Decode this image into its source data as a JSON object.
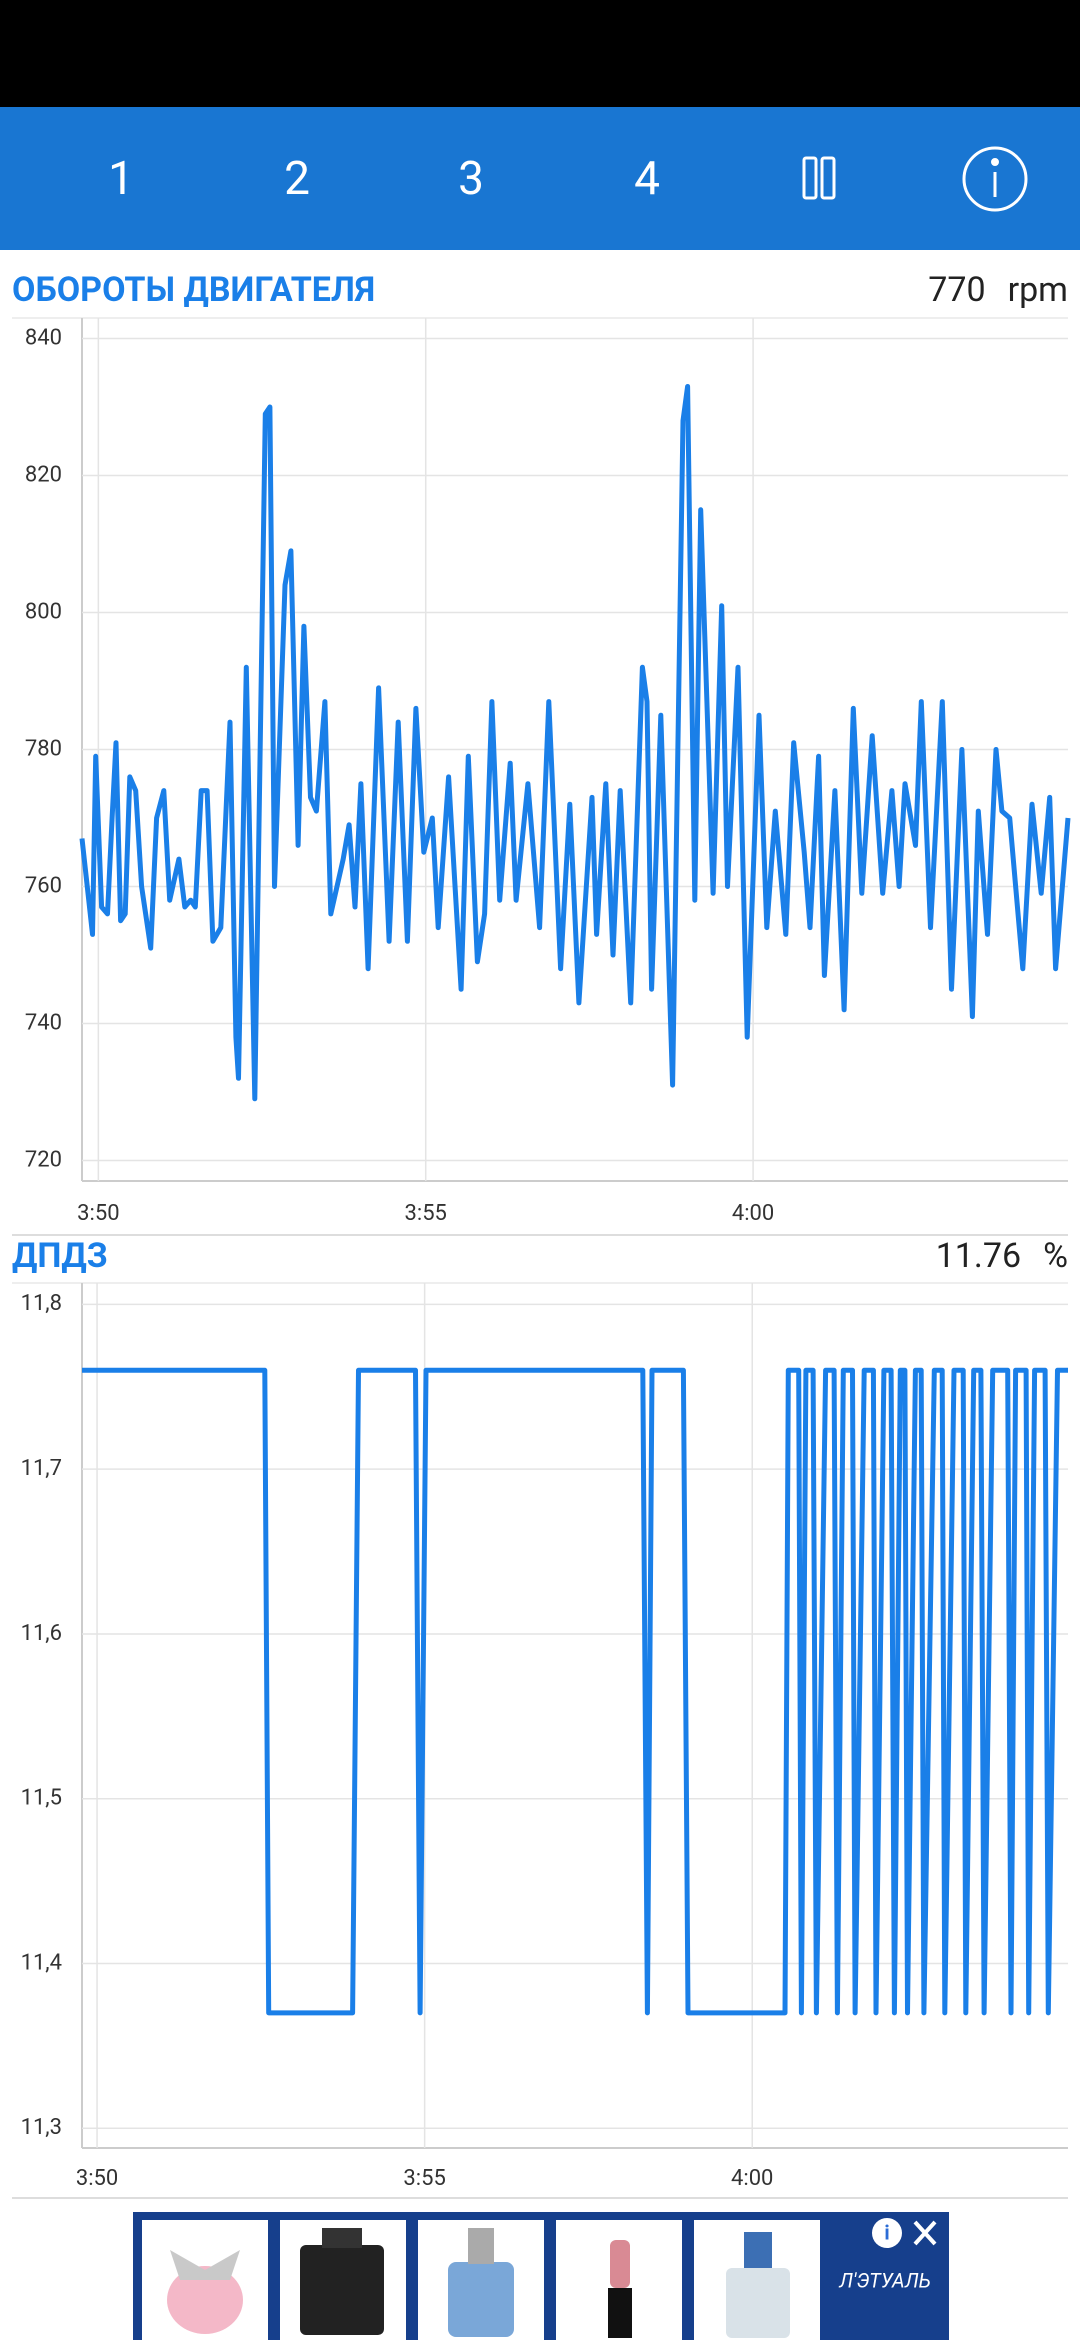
{
  "toolbar": {
    "tabs": [
      "1",
      "2",
      "3",
      "4"
    ]
  },
  "chart_data": [
    {
      "type": "line",
      "title": "ОБОРОТЫ ДВИГАТЕЛЯ",
      "current_value": 770,
      "unit": "rpm",
      "color": "#1a7fe8",
      "grid": true,
      "x": [
        229.75,
        229.91,
        229.96,
        230.05,
        230.14,
        230.21,
        230.27,
        230.34,
        230.41,
        230.48,
        230.57,
        230.66,
        230.8,
        230.89,
        231.0,
        231.09,
        231.23,
        231.32,
        231.41,
        231.48,
        231.57,
        231.66,
        231.75,
        231.87,
        232.01,
        232.1,
        232.14,
        232.26,
        232.39,
        232.55,
        232.62,
        232.69,
        232.85,
        232.94,
        233.05,
        233.14,
        233.24,
        233.33,
        233.46,
        233.55,
        233.74,
        233.83,
        233.92,
        234.01,
        234.12,
        234.28,
        234.44,
        234.58,
        234.72,
        234.85,
        234.97,
        235.1,
        235.19,
        235.35,
        235.54,
        235.65,
        235.79,
        235.9,
        236.01,
        236.13,
        236.29,
        236.38,
        236.56,
        236.74,
        236.88,
        237.06,
        237.2,
        237.34,
        237.54,
        237.61,
        237.75,
        237.86,
        237.97,
        238.13,
        238.31,
        238.38,
        238.45,
        238.59,
        238.77,
        238.93,
        239.0,
        239.11,
        239.2,
        239.39,
        239.52,
        239.61,
        239.77,
        239.91,
        240.09,
        240.21,
        240.34,
        240.5,
        240.62,
        240.78,
        240.87,
        241.0,
        241.09,
        241.25,
        241.39,
        241.53,
        241.66,
        241.82,
        241.98,
        242.12,
        242.23,
        242.32,
        242.48,
        242.57,
        242.71,
        242.89,
        243.03,
        243.19,
        243.35,
        243.44,
        243.58,
        243.71,
        243.8,
        243.92,
        244.12,
        244.26,
        244.4,
        244.53,
        244.62,
        244.81
      ],
      "values": [
        767,
        753,
        779,
        757,
        756,
        770,
        781,
        755,
        756,
        776,
        774,
        760,
        751,
        770,
        774,
        758,
        764,
        757,
        758,
        757,
        774,
        774,
        752,
        754,
        784,
        738,
        732,
        792,
        729,
        829,
        830,
        760,
        804,
        809,
        766,
        798,
        773,
        771,
        787,
        756,
        764,
        769,
        757,
        775,
        748,
        789,
        752,
        784,
        752,
        786,
        765,
        770,
        754,
        776,
        745,
        779,
        749,
        756,
        787,
        758,
        778,
        758,
        775,
        754,
        787,
        748,
        772,
        743,
        773,
        753,
        775,
        750,
        774,
        743,
        792,
        787,
        745,
        785,
        731,
        828,
        833,
        758,
        815,
        759,
        801,
        760,
        792,
        738,
        785,
        754,
        771,
        753,
        781,
        765,
        754,
        779,
        747,
        774,
        742,
        786,
        759,
        782,
        759,
        774,
        760,
        775,
        766,
        787,
        754,
        787,
        745,
        780,
        741,
        771,
        753,
        780,
        771,
        770,
        748,
        772,
        759,
        773,
        748,
        770
      ],
      "xlim": [
        229.75,
        244.81
      ],
      "ylim": [
        717,
        843
      ],
      "xticks": [
        {
          "value": 230,
          "label": "3:50"
        },
        {
          "value": 235,
          "label": "3:55"
        },
        {
          "value": 240,
          "label": "4:00"
        }
      ],
      "yticks": [
        720,
        740,
        760,
        780,
        800,
        820,
        840
      ]
    },
    {
      "type": "line",
      "title": "ДПДЗ",
      "current_value": 11.76,
      "unit": "%",
      "color": "#1a7fe8",
      "grid": true,
      "x": [
        229.77,
        232.56,
        232.62,
        233.9,
        233.99,
        234.86,
        234.93,
        235.02,
        238.33,
        238.4,
        238.47,
        238.95,
        239.02,
        240.5,
        240.55,
        240.71,
        240.75,
        240.82,
        240.93,
        240.98,
        241.12,
        241.25,
        241.3,
        241.39,
        241.53,
        241.57,
        241.71,
        241.85,
        241.89,
        242.01,
        242.12,
        242.17,
        242.26,
        242.33,
        242.37,
        242.49,
        242.58,
        242.62,
        242.78,
        242.9,
        242.94,
        243.08,
        243.22,
        243.26,
        243.38,
        243.49,
        243.54,
        243.67,
        243.9,
        243.95,
        244.02,
        244.18,
        244.22,
        244.31,
        244.47,
        244.52,
        244.66,
        244.82
      ],
      "values": [
        11.76,
        11.76,
        11.37,
        11.37,
        11.76,
        11.76,
        11.37,
        11.76,
        11.76,
        11.37,
        11.76,
        11.76,
        11.37,
        11.37,
        11.76,
        11.76,
        11.37,
        11.76,
        11.76,
        11.37,
        11.76,
        11.76,
        11.37,
        11.76,
        11.76,
        11.37,
        11.76,
        11.76,
        11.37,
        11.76,
        11.76,
        11.37,
        11.76,
        11.76,
        11.37,
        11.76,
        11.76,
        11.37,
        11.76,
        11.76,
        11.37,
        11.76,
        11.76,
        11.37,
        11.76,
        11.76,
        11.37,
        11.76,
        11.76,
        11.37,
        11.76,
        11.76,
        11.37,
        11.76,
        11.76,
        11.37,
        11.76,
        11.76
      ],
      "xlim": [
        229.77,
        244.82
      ],
      "ylim": [
        11.288,
        11.813
      ],
      "xticks": [
        {
          "value": 230,
          "label": "3:50"
        },
        {
          "value": 235,
          "label": "3:55"
        },
        {
          "value": 240,
          "label": "4:00"
        }
      ],
      "yticks": [
        {
          "value": 11.3,
          "label": "11,3"
        },
        {
          "value": 11.4,
          "label": "11,4"
        },
        {
          "value": 11.5,
          "label": "11,5"
        },
        {
          "value": 11.6,
          "label": "11,6"
        },
        {
          "value": 11.7,
          "label": "11,7"
        },
        {
          "value": 11.8,
          "label": "11,8"
        }
      ]
    }
  ],
  "ad": {
    "brand": "Л'ЭТУАЛЬ"
  }
}
